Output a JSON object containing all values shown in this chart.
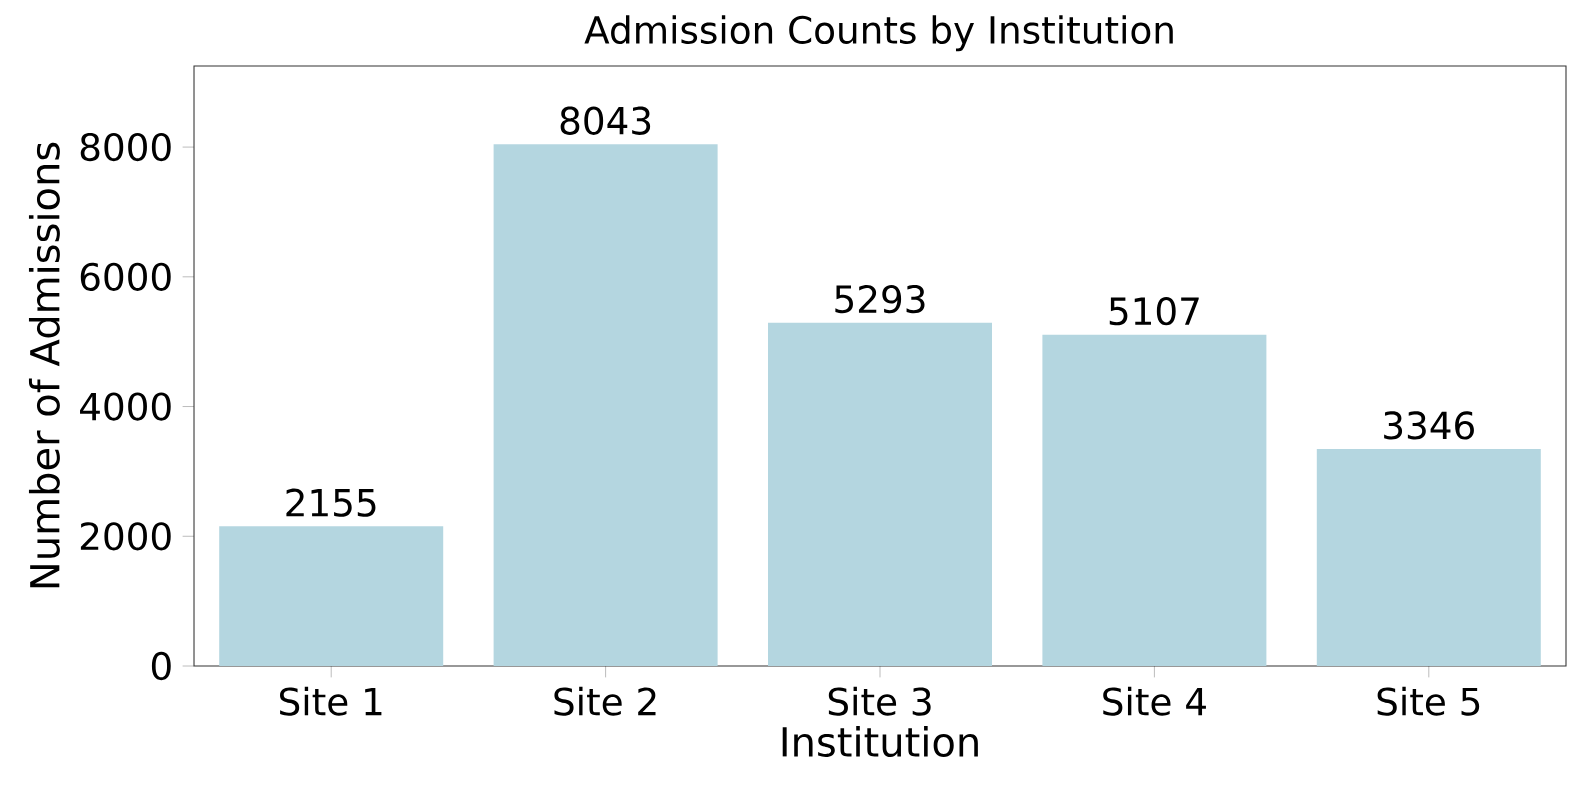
{
  "chart_data": {
    "type": "bar",
    "title": "Admission Counts by Institution",
    "xlabel": "Institution",
    "ylabel": "Number of Admissions",
    "categories": [
      "Site 1",
      "Site 2",
      "Site 3",
      "Site 4",
      "Site 5"
    ],
    "values": [
      2155,
      8043,
      5293,
      5107,
      3346
    ],
    "color": "#b4d6e0",
    "ylim": [
      0,
      9250
    ],
    "yticks": [
      0,
      2000,
      4000,
      6000,
      8000
    ],
    "data_labels": true,
    "grid": false
  }
}
